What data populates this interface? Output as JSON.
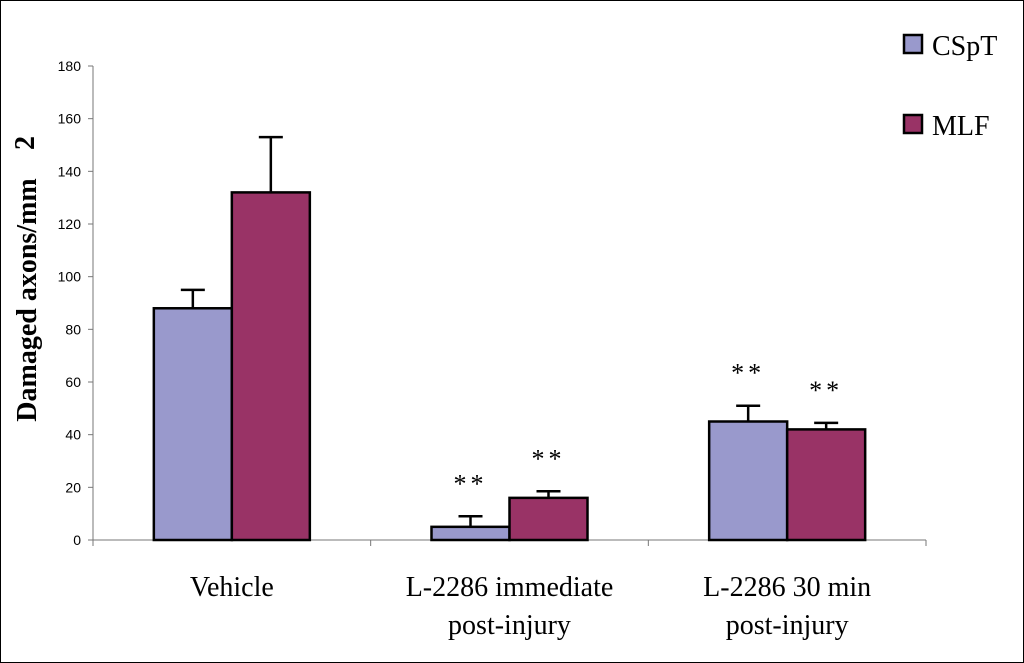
{
  "chart_data": {
    "type": "bar",
    "title": "",
    "xlabel": "",
    "ylabel": "Damaged axons/mm",
    "ylabel_superscript": "2",
    "ylim": [
      0,
      180
    ],
    "yticks": [
      0,
      20,
      40,
      60,
      80,
      100,
      120,
      140,
      160,
      180
    ],
    "grid": false,
    "legend_position": "top-right",
    "categories": [
      [
        "Vehicle"
      ],
      [
        "L-2286 immediate",
        "post-injury"
      ],
      [
        "L-2286 30 min",
        "post-injury"
      ]
    ],
    "series": [
      {
        "name": "CSpT",
        "color": "#9999cc",
        "values": [
          88,
          5,
          45
        ],
        "errors": [
          7,
          4,
          6
        ],
        "annotations": [
          "",
          "**",
          "**"
        ]
      },
      {
        "name": "MLF",
        "color": "#993366",
        "values": [
          132,
          16,
          42
        ],
        "errors": [
          21,
          2.5,
          2.5
        ],
        "annotations": [
          "",
          "**",
          "**"
        ]
      }
    ]
  }
}
